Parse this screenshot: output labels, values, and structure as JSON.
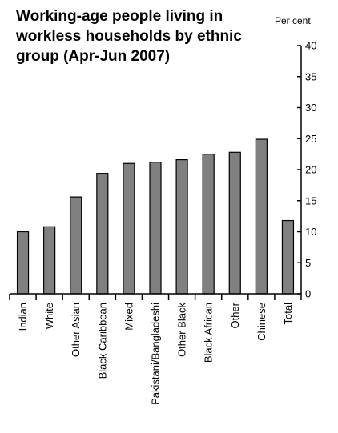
{
  "chart_data": {
    "type": "bar",
    "title": "Working-age people living in workless households by ethnic group (Apr-Jun 2007)",
    "ylabel": "Per cent",
    "xlabel": "",
    "categories": [
      "Indian",
      "White",
      "Other Asian",
      "Black Caribbean",
      "Mixed",
      "Pakistani/Bangladeshi",
      "Other Black",
      "Black African",
      "Other",
      "Chinese",
      "Total"
    ],
    "values": [
      10,
      10.8,
      15.6,
      19.4,
      21,
      21.2,
      21.6,
      22.5,
      22.8,
      24.9,
      11.8
    ],
    "ylim": [
      0,
      40
    ],
    "yticks": [
      "0",
      "5",
      "10",
      "15",
      "20",
      "25",
      "30",
      "35",
      "40"
    ],
    "y_axis_side": "right",
    "grid": false,
    "legend": "none",
    "colors": {
      "bar_fill": "#808080",
      "bar_stroke": "#000000",
      "axis": "#000000"
    }
  }
}
